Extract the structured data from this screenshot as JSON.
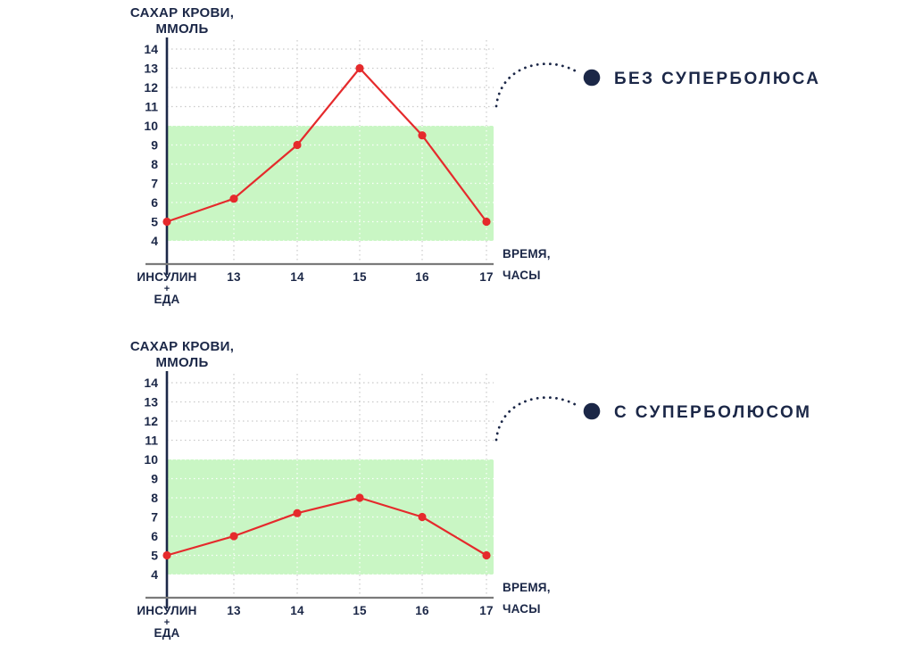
{
  "colors": {
    "navy": "#1b2747",
    "red": "#e52a2c",
    "target_band": "#c9f6c4",
    "grid": "#c7c7c7",
    "grid_on_band": "#ffffff",
    "x_axis": "#7a7a7a",
    "background": "#ffffff"
  },
  "chart_data": [
    {
      "type": "line",
      "title_lines": [
        "САХАР КРОВИ,",
        "ММОЛЬ"
      ],
      "xlabel_lines": [
        "ВРЕМЯ,",
        "ЧАСЫ"
      ],
      "first_tick_lines": [
        "ИНСУЛИН",
        "+",
        "ЕДА"
      ],
      "hour_ticks": [
        "13",
        "14",
        "15",
        "16",
        "17"
      ],
      "categories": [
        "ИНСУЛИН + ЕДА",
        "13",
        "14",
        "15",
        "16",
        "17"
      ],
      "values": [
        5,
        6.2,
        9,
        13,
        9.5,
        5
      ],
      "ylim": [
        4,
        14
      ],
      "yticks": [
        4,
        5,
        6,
        7,
        8,
        9,
        10,
        11,
        12,
        13,
        14
      ],
      "target_band": [
        4,
        10
      ],
      "grid": true,
      "legend_position": "right-annotation",
      "annotation": {
        "label": "БЕЗ СУПЕРБОЛЮСА"
      }
    },
    {
      "type": "line",
      "title_lines": [
        "САХАР КРОВИ,",
        "ММОЛЬ"
      ],
      "xlabel_lines": [
        "ВРЕМЯ,",
        "ЧАСЫ"
      ],
      "first_tick_lines": [
        "ИНСУЛИН",
        "+",
        "ЕДА"
      ],
      "hour_ticks": [
        "13",
        "14",
        "15",
        "16",
        "17"
      ],
      "categories": [
        "ИНСУЛИН + ЕДА",
        "13",
        "14",
        "15",
        "16",
        "17"
      ],
      "values": [
        5,
        6,
        7.2,
        8,
        7,
        5
      ],
      "ylim": [
        4,
        14
      ],
      "yticks": [
        4,
        5,
        6,
        7,
        8,
        9,
        10,
        11,
        12,
        13,
        14
      ],
      "target_band": [
        4,
        10
      ],
      "grid": true,
      "legend_position": "right-annotation",
      "annotation": {
        "label": "С СУПЕРБОЛЮСОМ"
      }
    }
  ]
}
